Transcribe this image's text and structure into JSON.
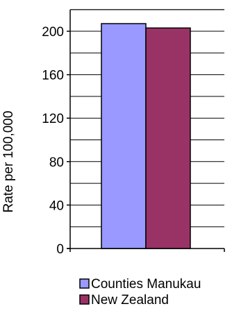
{
  "chart_data": {
    "type": "bar",
    "title": "",
    "xlabel": "",
    "ylabel": "Rate per 100,000",
    "ylim": [
      0,
      200
    ],
    "yticks": [
      0,
      40,
      80,
      120,
      160,
      200
    ],
    "grid": true,
    "legend_position": "bottom",
    "series": [
      {
        "name": "Counties Manukau",
        "values": [
          207
        ],
        "color": "#9999ff"
      },
      {
        "name": "New Zealand",
        "values": [
          203
        ],
        "color": "#993366"
      }
    ]
  }
}
